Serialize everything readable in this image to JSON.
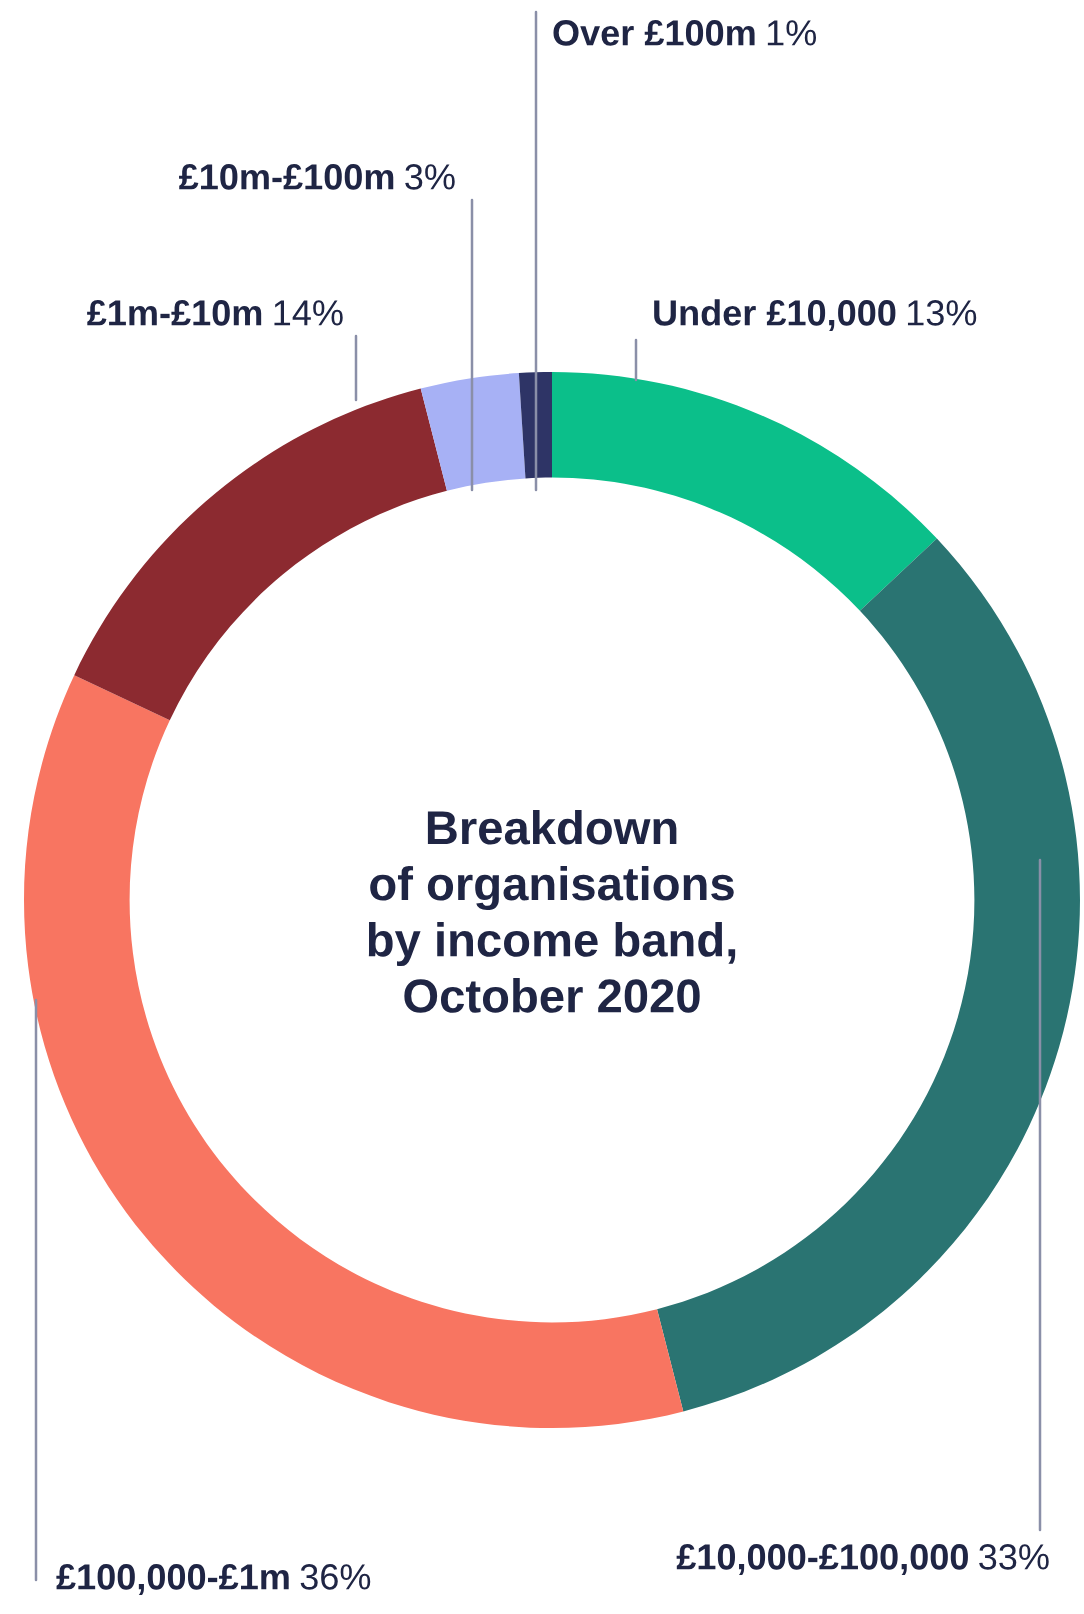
{
  "chart_data": {
    "type": "donut",
    "title": "Breakdown\nof organisations\nby income band,\nOctober 2020",
    "categories": [
      "Under £10,000",
      "£10,000-£100,000",
      "£100,000-£1m",
      "£1m-£10m",
      "£10m-£100m",
      "Over £100m"
    ],
    "values": [
      13,
      33,
      36,
      14,
      3,
      1
    ],
    "colors": [
      "#0bbf8a",
      "#2a7472",
      "#f87561",
      "#8c2a30",
      "#a7b1f5",
      "#2e3466"
    ],
    "value_labels": [
      "13%",
      "33%",
      "36%",
      "14%",
      "3%",
      "1%"
    ]
  }
}
